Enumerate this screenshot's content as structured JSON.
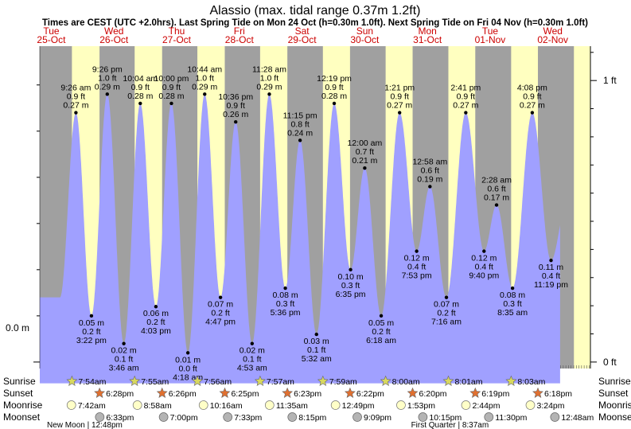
{
  "chart_data": {
    "type": "area",
    "title": "Alassio (max. tidal range 0.37m 1.2ft)",
    "subtitle": "Times are CEST (UTC +2.0hrs). Last Spring Tide on Mon 24 Oct (h=0.30m 1.0ft). Next Spring Tide on Fri 04 Nov (h=0.30m 1.0ft)",
    "ylabel_left": "0.0 m",
    "ytick_right": [
      "0 ft",
      "1 ft"
    ],
    "ylim_m": [
      -0.007,
      0.342
    ],
    "x_start_hours": -4.4,
    "x_end_hours": 206.4,
    "days": [
      {
        "dow": "Tue",
        "date": "25-Oct",
        "hour": 0
      },
      {
        "dow": "Wed",
        "date": "26-Oct",
        "hour": 24
      },
      {
        "dow": "Thu",
        "date": "27-Oct",
        "hour": 48
      },
      {
        "dow": "Fri",
        "date": "28-Oct",
        "hour": 72
      },
      {
        "dow": "Sat",
        "date": "29-Oct",
        "hour": 96
      },
      {
        "dow": "Sun",
        "date": "30-Oct",
        "hour": 120
      },
      {
        "dow": "Mon",
        "date": "31-Oct",
        "hour": 144
      },
      {
        "dow": "Tue",
        "date": "01-Nov",
        "hour": 168
      },
      {
        "dow": "Wed",
        "date": "02-Nov",
        "hour": 192
      }
    ],
    "daylight": [
      {
        "start": 7.9,
        "end": 18.47
      },
      {
        "start": 31.92,
        "end": 42.43
      },
      {
        "start": 55.93,
        "end": 66.42
      },
      {
        "start": 79.95,
        "end": 90.38
      },
      {
        "start": 103.98,
        "end": 114.37
      },
      {
        "start": 128.0,
        "end": 138.33
      },
      {
        "start": 152.02,
        "end": 162.32
      },
      {
        "start": 176.05,
        "end": 186.3
      },
      {
        "start": 200.08,
        "end": 210.28
      }
    ],
    "extremes": [
      {
        "hour": 9.43,
        "m": 0.27,
        "label": [
          "9:26 am",
          "0.9 ft",
          "0.27 m"
        ],
        "type": "high"
      },
      {
        "hour": 15.37,
        "m": 0.05,
        "label": [
          "0.05 m",
          "0.2 ft",
          "3:22 pm"
        ],
        "type": "low"
      },
      {
        "hour": 21.43,
        "m": 0.29,
        "label": [
          "9:26 pm",
          "1.0 ft",
          "0.29 m"
        ],
        "type": "high"
      },
      {
        "hour": 27.77,
        "m": 0.02,
        "label": [
          "0.02 m",
          "0.1 ft",
          "3:46 am"
        ],
        "type": "low"
      },
      {
        "hour": 34.07,
        "m": 0.28,
        "label": [
          "10:04 am",
          "0.9 ft",
          "0.28 m"
        ],
        "type": "high"
      },
      {
        "hour": 40.05,
        "m": 0.06,
        "label": [
          "0.06 m",
          "0.2 ft",
          "4:03 pm"
        ],
        "type": "low"
      },
      {
        "hour": 46.0,
        "m": 0.28,
        "label": [
          "10:00 pm",
          "0.9 ft",
          "0.28 m"
        ],
        "type": "high"
      },
      {
        "hour": 52.3,
        "m": 0.01,
        "label": [
          "0.01 m",
          "0.0 ft",
          "4:18 am"
        ],
        "type": "low"
      },
      {
        "hour": 58.73,
        "m": 0.29,
        "label": [
          "10:44 am",
          "1.0 ft",
          "0.29 m"
        ],
        "type": "high"
      },
      {
        "hour": 64.78,
        "m": 0.07,
        "label": [
          "0.07 m",
          "0.2 ft",
          "4:47 pm"
        ],
        "type": "low"
      },
      {
        "hour": 70.6,
        "m": 0.26,
        "label": [
          "10:36 pm",
          "0.9 ft",
          "0.26 m"
        ],
        "type": "high"
      },
      {
        "hour": 76.88,
        "m": 0.02,
        "label": [
          "0.02 m",
          "0.1 ft",
          "4:53 am"
        ],
        "type": "low"
      },
      {
        "hour": 83.47,
        "m": 0.29,
        "label": [
          "11:28 am",
          "1.0 ft",
          "0.29 m"
        ],
        "type": "high"
      },
      {
        "hour": 89.6,
        "m": 0.08,
        "label": [
          "0.08 m",
          "0.3 ft",
          "5:36 pm"
        ],
        "type": "low"
      },
      {
        "hour": 95.25,
        "m": 0.24,
        "label": [
          "11:15 pm",
          "0.8 ft",
          "0.24 m"
        ],
        "type": "high"
      },
      {
        "hour": 101.53,
        "m": 0.03,
        "label": [
          "0.03 m",
          "0.1 ft",
          "5:32 am"
        ],
        "type": "low"
      },
      {
        "hour": 108.32,
        "m": 0.28,
        "label": [
          "12:19 pm",
          "0.9 ft",
          "0.28 m"
        ],
        "type": "high"
      },
      {
        "hour": 114.58,
        "m": 0.1,
        "label": [
          "0.10 m",
          "0.3 ft",
          "6:35 pm"
        ],
        "type": "low"
      },
      {
        "hour": 120.0,
        "m": 0.21,
        "label": [
          "12:00 am",
          "0.7 ft",
          "0.21 m"
        ],
        "type": "high"
      },
      {
        "hour": 126.3,
        "m": 0.05,
        "label": [
          "0.05 m",
          "0.2 ft",
          "6:18 am"
        ],
        "type": "low"
      },
      {
        "hour": 133.35,
        "m": 0.27,
        "label": [
          "1:21 pm",
          "0.9 ft",
          "0.27 m"
        ],
        "type": "high"
      },
      {
        "hour": 139.88,
        "m": 0.12,
        "label": [
          "0.12 m",
          "0.4 ft",
          "7:53 pm"
        ],
        "type": "low"
      },
      {
        "hour": 144.97,
        "m": 0.19,
        "label": [
          "12:58 am",
          "0.6 ft",
          "0.19 m"
        ],
        "type": "high"
      },
      {
        "hour": 151.27,
        "m": 0.07,
        "label": [
          "0.07 m",
          "0.2 ft",
          "7:16 am"
        ],
        "type": "low"
      },
      {
        "hour": 158.68,
        "m": 0.27,
        "label": [
          "2:41 pm",
          "0.9 ft",
          "0.27 m"
        ],
        "type": "high"
      },
      {
        "hour": 165.67,
        "m": 0.12,
        "label": [
          "0.12 m",
          "0.4 ft",
          "9:40 pm"
        ],
        "type": "low"
      },
      {
        "hour": 170.47,
        "m": 0.17,
        "label": [
          "2:28 am",
          "0.6 ft",
          "0.17 m"
        ],
        "type": "high"
      },
      {
        "hour": 176.58,
        "m": 0.08,
        "label": [
          "0.08 m",
          "0.3 ft",
          "8:35 am"
        ],
        "type": "low"
      },
      {
        "hour": 184.13,
        "m": 0.27,
        "label": [
          "4:08 pm",
          "0.9 ft",
          "0.27 m"
        ],
        "type": "high"
      },
      {
        "hour": 191.32,
        "m": 0.11,
        "label": [
          "0.11 m",
          "0.4 ft",
          "11:19 pm"
        ],
        "type": "low"
      }
    ],
    "sun_moon": {
      "row_labels": [
        "Sunrise",
        "Sunset",
        "Moonrise",
        "Moonset"
      ],
      "sunrise": [
        {
          "hour": 7.9,
          "text": "7:54am"
        },
        {
          "hour": 31.92,
          "text": "7:55am"
        },
        {
          "hour": 55.93,
          "text": "7:56am"
        },
        {
          "hour": 79.95,
          "text": "7:57am"
        },
        {
          "hour": 103.98,
          "text": "7:59am"
        },
        {
          "hour": 128.0,
          "text": "8:00am"
        },
        {
          "hour": 152.02,
          "text": "8:01am"
        },
        {
          "hour": 176.05,
          "text": "8:03am"
        }
      ],
      "sunset": [
        {
          "hour": 18.47,
          "text": "6:28pm"
        },
        {
          "hour": 42.43,
          "text": "6:26pm"
        },
        {
          "hour": 66.42,
          "text": "6:25pm"
        },
        {
          "hour": 90.38,
          "text": "6:23pm"
        },
        {
          "hour": 114.37,
          "text": "6:22pm"
        },
        {
          "hour": 138.33,
          "text": "6:20pm"
        },
        {
          "hour": 162.32,
          "text": "6:19pm"
        },
        {
          "hour": 186.3,
          "text": "6:18pm"
        }
      ],
      "moonrise": [
        {
          "hour": 7.7,
          "text": "7:42am"
        },
        {
          "hour": 32.97,
          "text": "8:58am"
        },
        {
          "hour": 58.27,
          "text": "10:16am"
        },
        {
          "hour": 83.58,
          "text": "11:35am"
        },
        {
          "hour": 108.82,
          "text": "12:49pm"
        },
        {
          "hour": 133.88,
          "text": "1:53pm"
        },
        {
          "hour": 158.73,
          "text": "2:44pm"
        },
        {
          "hour": 183.4,
          "text": "3:24pm"
        }
      ],
      "moonset": [
        {
          "hour": 18.55,
          "text": "6:33pm"
        },
        {
          "hour": 43.0,
          "text": "7:00pm"
        },
        {
          "hour": 67.55,
          "text": "7:33pm"
        },
        {
          "hour": 92.25,
          "text": "8:15pm"
        },
        {
          "hour": 117.15,
          "text": "9:09pm"
        },
        {
          "hour": 142.25,
          "text": "10:15pm"
        },
        {
          "hour": 167.5,
          "text": "11:30pm"
        },
        {
          "hour": 192.8,
          "text": "12:48am"
        }
      ],
      "phases": [
        {
          "hour": 12.8,
          "text": "New Moon | 12:48pm"
        },
        {
          "hour": 152.6,
          "text": "First Quarter | 8:37am"
        }
      ]
    },
    "colors": {
      "night": "#a0a0a0",
      "day": "#ffffc0",
      "water": "#a0a0ff",
      "sunrise_star": "#d8d860",
      "sunset_star": "#e07030",
      "moonrise": "#ffffc8",
      "moonset": "#b4b4b4"
    }
  }
}
